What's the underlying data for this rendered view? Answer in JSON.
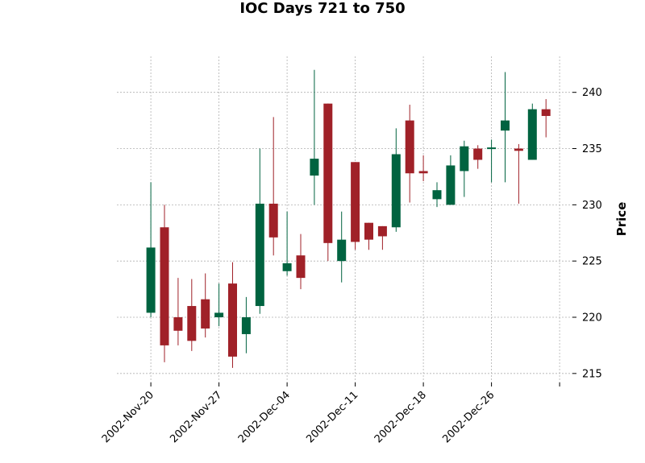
{
  "chart_data": {
    "type": "candlestick",
    "title": "IOC Days 721 to 750",
    "xlabel": "",
    "ylabel": "Price",
    "ylim": [
      214.2,
      243.2
    ],
    "yticks": [
      215,
      220,
      225,
      230,
      235,
      240
    ],
    "xtick_labels": [
      "2002-Nov-20",
      "2002-Nov-27",
      "2002-Dec-04",
      "2002-Dec-11",
      "2002-Dec-18",
      "2002-Dec-26",
      ""
    ],
    "grid": true,
    "colors": {
      "up": "#006340",
      "down": "#a02128"
    },
    "candles": [
      {
        "open": 220.4,
        "high": 232.0,
        "low": 220.0,
        "close": 226.2
      },
      {
        "open": 228.0,
        "high": 230.0,
        "low": 216.0,
        "close": 217.5
      },
      {
        "open": 220.0,
        "high": 223.5,
        "low": 217.5,
        "close": 218.8
      },
      {
        "open": 221.0,
        "high": 223.4,
        "low": 217.0,
        "close": 217.9
      },
      {
        "open": 221.6,
        "high": 223.9,
        "low": 218.2,
        "close": 219.0
      },
      {
        "open": 220.0,
        "high": 223.0,
        "low": 219.2,
        "close": 220.4
      },
      {
        "open": 223.0,
        "high": 224.9,
        "low": 215.5,
        "close": 216.5
      },
      {
        "open": 218.5,
        "high": 221.8,
        "low": 216.8,
        "close": 220.0
      },
      {
        "open": 221.0,
        "high": 235.0,
        "low": 220.3,
        "close": 230.1
      },
      {
        "open": 230.1,
        "high": 237.8,
        "low": 225.5,
        "close": 227.1
      },
      {
        "open": 224.1,
        "high": 229.4,
        "low": 223.7,
        "close": 224.8
      },
      {
        "open": 225.5,
        "high": 227.4,
        "low": 222.5,
        "close": 223.5
      },
      {
        "open": 232.6,
        "high": 242.0,
        "low": 230.0,
        "close": 234.1
      },
      {
        "open": 239.0,
        "high": 239.0,
        "low": 225.0,
        "close": 226.6
      },
      {
        "open": 225.0,
        "high": 229.4,
        "low": 223.1,
        "close": 226.9
      },
      {
        "open": 233.8,
        "high": 233.8,
        "low": 226.0,
        "close": 226.7
      },
      {
        "open": 228.4,
        "high": 228.4,
        "low": 226.0,
        "close": 226.9
      },
      {
        "open": 228.1,
        "high": 228.1,
        "low": 226.0,
        "close": 227.2
      },
      {
        "open": 228.0,
        "high": 236.8,
        "low": 227.6,
        "close": 234.5
      },
      {
        "open": 237.5,
        "high": 238.9,
        "low": 230.2,
        "close": 232.8
      },
      {
        "open": 233.0,
        "high": 234.4,
        "low": 232.1,
        "close": 232.8
      },
      {
        "open": 230.5,
        "high": 232.0,
        "low": 229.8,
        "close": 231.3
      },
      {
        "open": 230.0,
        "high": 234.4,
        "low": 230.0,
        "close": 233.5
      },
      {
        "open": 233.0,
        "high": 235.7,
        "low": 230.7,
        "close": 235.2
      },
      {
        "open": 235.0,
        "high": 235.3,
        "low": 233.2,
        "close": 234.0
      },
      {
        "open": 235.0,
        "high": 235.8,
        "low": 232.0,
        "close": 235.1
      },
      {
        "open": 236.6,
        "high": 241.8,
        "low": 232.0,
        "close": 237.5
      },
      {
        "open": 235.0,
        "high": 235.4,
        "low": 230.1,
        "close": 234.8
      },
      {
        "open": 234.0,
        "high": 239.0,
        "low": 234.0,
        "close": 238.5
      },
      {
        "open": 238.5,
        "high": 239.4,
        "low": 236.0,
        "close": 237.9
      }
    ]
  }
}
